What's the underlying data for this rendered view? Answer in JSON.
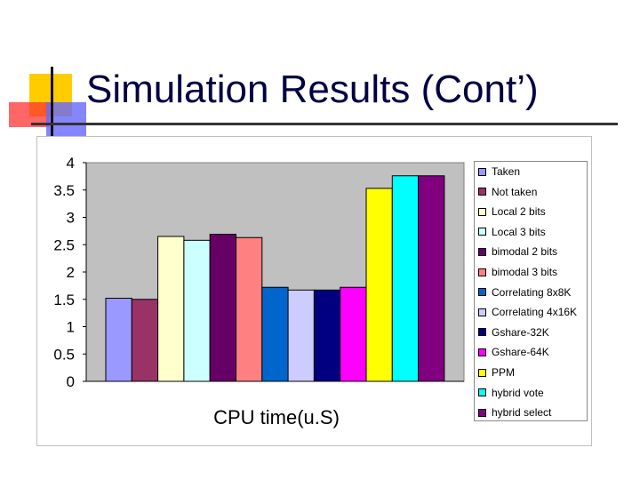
{
  "slide": {
    "title": "Simulation Results (Cont’)"
  },
  "chart_data": {
    "type": "bar",
    "title": "",
    "xlabel": "CPU time(u.S)",
    "ylabel": "",
    "ylim": [
      0,
      4
    ],
    "yticks": [
      "0",
      "0.5",
      "1",
      "1.5",
      "2",
      "2.5",
      "3",
      "3.5",
      "4"
    ],
    "grid": false,
    "legend_position": "right",
    "plot_background": "#c0c0c0",
    "series": [
      {
        "name": "Taken",
        "value": 1.52,
        "color": "#9999ff"
      },
      {
        "name": "Not taken",
        "value": 1.5,
        "color": "#993366"
      },
      {
        "name": "Local 2 bits",
        "value": 2.65,
        "color": "#ffffcc"
      },
      {
        "name": "Local 3 bits",
        "value": 2.58,
        "color": "#ccffff"
      },
      {
        "name": "bimodal 2 bits",
        "value": 2.69,
        "color": "#660066"
      },
      {
        "name": "bimodal 3 bits",
        "value": 2.63,
        "color": "#ff8080"
      },
      {
        "name": "Correlating 8x8K",
        "value": 1.72,
        "color": "#0066cc"
      },
      {
        "name": "Correlating 4x16K",
        "value": 1.67,
        "color": "#ccccff"
      },
      {
        "name": "Gshare-32K",
        "value": 1.67,
        "color": "#000080"
      },
      {
        "name": "Gshare-64K",
        "value": 1.72,
        "color": "#ff00ff"
      },
      {
        "name": "PPM",
        "value": 3.53,
        "color": "#ffff00"
      },
      {
        "name": "hybrid vote",
        "value": 3.76,
        "color": "#00ffff"
      },
      {
        "name": "hybrid select",
        "value": 3.76,
        "color": "#800080"
      }
    ]
  }
}
